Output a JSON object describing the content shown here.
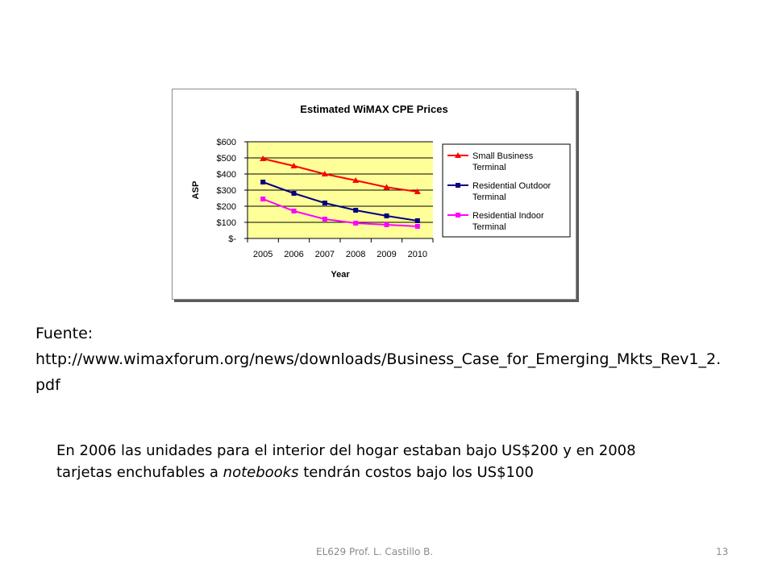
{
  "chart_data": {
    "type": "line",
    "title": "Estimated WiMAX CPE Prices",
    "xlabel": "Year",
    "ylabel": "ASP",
    "categories": [
      "2005",
      "2006",
      "2007",
      "2008",
      "2009",
      "2010"
    ],
    "ylim": [
      0,
      600
    ],
    "yticks": [
      0,
      100,
      200,
      300,
      400,
      500,
      600
    ],
    "ytick_labels": [
      "$-",
      "$100",
      "$200",
      "$300",
      "$400",
      "$500",
      "$600"
    ],
    "grid": true,
    "plot_background": "#ffff99",
    "legend_position": "right",
    "series": [
      {
        "name": "Small Business Terminal",
        "color": "#ff0000",
        "marker": "triangle",
        "values": [
          495,
          450,
          400,
          360,
          318,
          290
        ]
      },
      {
        "name": "Residential Outdoor Terminal",
        "color": "#000080",
        "marker": "square",
        "values": [
          350,
          280,
          220,
          175,
          140,
          110
        ]
      },
      {
        "name": "Residential Indoor Terminal",
        "color": "#ff00ff",
        "marker": "square",
        "values": [
          245,
          170,
          120,
          95,
          85,
          75
        ]
      }
    ]
  },
  "source": {
    "label": "Fuente:",
    "url_part1": "http://www.wimaxforum.org/news/downloads/Business_Case_for_Emerging_Mkts_Rev1_2.",
    "url_part2": "pdf"
  },
  "note": {
    "line1": "En 2006 las unidades  para  el interior del hogar estaban bajo US$200 y en 2008",
    "line2_before": "tarjetas enchufables a ",
    "line2_italic": "notebooks",
    "line2_after": " tendrán costos bajo los US$100"
  },
  "footer": {
    "course": "EL629   Prof. L. Castillo B.",
    "page": "13"
  }
}
